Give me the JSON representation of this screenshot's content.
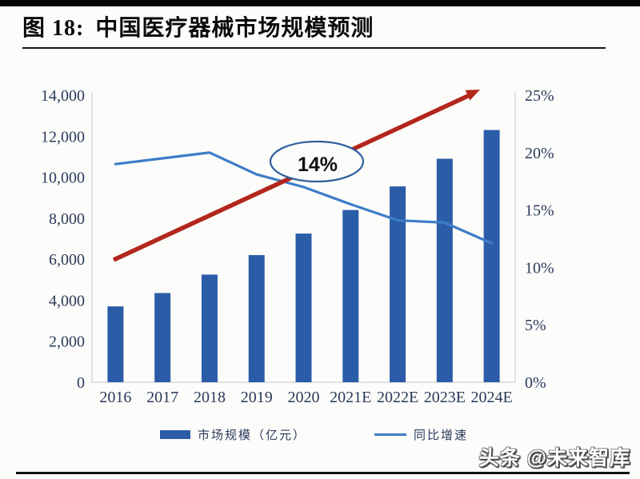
{
  "header": {
    "figure_no": "图 18:",
    "title": "中国医疗器械市场规模预测"
  },
  "chart_data": {
    "type": "bar",
    "combo": "bar+line",
    "title": "中国医疗器械市场规模预测",
    "categories": [
      "2016",
      "2017",
      "2018",
      "2019",
      "2020",
      "2021E",
      "2022E",
      "2023E",
      "2024E"
    ],
    "series": [
      {
        "name": "市场规模（亿元）",
        "type": "bar",
        "axis": "left",
        "values": [
          3700,
          4350,
          5250,
          6200,
          7250,
          8400,
          9550,
          10900,
          12300
        ]
      },
      {
        "name": "同比增速",
        "type": "line",
        "axis": "right",
        "unit": "%",
        "values": [
          19.0,
          19.5,
          20.0,
          18.1,
          17.0,
          15.5,
          14.1,
          13.9,
          12.1
        ]
      }
    ],
    "left_axis": {
      "min": 0,
      "max": 14000,
      "step": 2000,
      "tick_labels": [
        "0",
        "2,000",
        "4,000",
        "6,000",
        "8,000",
        "10,000",
        "12,000",
        "14,000"
      ]
    },
    "right_axis": {
      "min": 0,
      "max": 25,
      "step": 5,
      "tick_labels": [
        "0%",
        "5%",
        "10%",
        "15%",
        "20%",
        "25%"
      ]
    },
    "annotation": {
      "text": "14%",
      "shape": "ellipse"
    },
    "trend_arrow": {
      "direction": "up-right"
    },
    "grid": false,
    "legend_position": "bottom",
    "legend": [
      {
        "label": "市场规模（亿元）",
        "swatch": "bar"
      },
      {
        "label": "同比增速",
        "swatch": "line"
      }
    ]
  },
  "colors": {
    "bar": "#2B5CA8",
    "line": "#3E7CC8",
    "arrow": "#B3261C",
    "axis_text": "#2A3A5C",
    "axis_line": "#D9D9D9",
    "annotation_border": "#2F5E9E",
    "annotation_fill": "#FCFCFA",
    "annotation_text": "#111111"
  },
  "footer": {
    "watermark": "头条 @未来智库"
  }
}
